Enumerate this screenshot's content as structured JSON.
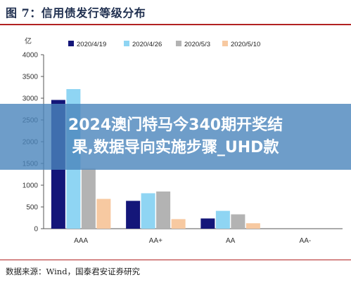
{
  "figure": {
    "title": "图 7：信用债发行等级分布",
    "source": "数据来源：Wind，国泰君安证券研究"
  },
  "overlay": {
    "line1": "2024澳门特马今340期开奖结",
    "line2": "果,数据导向实施步骤_UHD款"
  },
  "chart_data": {
    "type": "bar",
    "unit_label": "亿",
    "categories": [
      "AAA",
      "AA+",
      "AA",
      "AA-"
    ],
    "series": [
      {
        "name": "2020/4/19",
        "color": "#141679",
        "values": [
          2960,
          640,
          235,
          0
        ]
      },
      {
        "name": "2020/4/26",
        "color": "#8fd5f3",
        "values": [
          3210,
          815,
          410,
          0
        ]
      },
      {
        "name": "2020/5/3",
        "color": "#b3b3b3",
        "values": [
          1380,
          855,
          330,
          0
        ]
      },
      {
        "name": "2020/5/10",
        "color": "#f7c9a1",
        "values": [
          685,
          220,
          125,
          0
        ]
      }
    ],
    "ylim": [
      0,
      4000
    ],
    "yticks": [
      0,
      500,
      1000,
      1500,
      2000,
      2500,
      3000,
      3500,
      4000
    ],
    "legend_position": "top",
    "grid": false
  }
}
